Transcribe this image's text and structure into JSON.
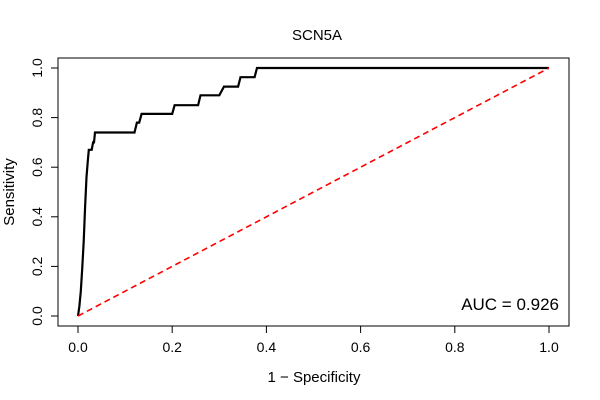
{
  "chart_data": {
    "type": "line",
    "title": "SCN5A",
    "xlabel": "1 − Specificity",
    "ylabel": "Sensitivity",
    "xlim": [
      0,
      1
    ],
    "ylim": [
      0,
      1
    ],
    "x_ticks": [
      0,
      0.2,
      0.4,
      0.6,
      0.8,
      1
    ],
    "x_tick_labels": [
      "0.0",
      "0.2",
      "0.4",
      "0.6",
      "0.8",
      "1.0"
    ],
    "y_ticks": [
      0,
      0.2,
      0.4,
      0.6,
      0.8,
      1
    ],
    "y_tick_labels": [
      "0.0",
      "0.2",
      "0.4",
      "0.6",
      "0.8",
      "1.0"
    ],
    "grid": false,
    "annotation": "AUC = 0.926",
    "series": [
      {
        "color": "#000000",
        "x": [
          0,
          0.003,
          0.006,
          0.009,
          0.012,
          0.015,
          0.018,
          0.021,
          0.023,
          0.025,
          0.027,
          0.029,
          0.032,
          0.034,
          0.036,
          0.04,
          0.045,
          0.12,
          0.125,
          0.128,
          0.13,
          0.135,
          0.14,
          0.2,
          0.205,
          0.21,
          0.255,
          0.26,
          0.3,
          0.31,
          0.34,
          0.345,
          0.375,
          0.38,
          1.0
        ],
        "y": [
          0,
          0.04,
          0.1,
          0.19,
          0.3,
          0.44,
          0.56,
          0.63,
          0.67,
          0.67,
          0.67,
          0.67,
          0.7,
          0.7,
          0.74,
          0.74,
          0.74,
          0.74,
          0.78,
          0.78,
          0.78,
          0.815,
          0.815,
          0.815,
          0.85,
          0.85,
          0.85,
          0.89,
          0.89,
          0.925,
          0.925,
          0.963,
          0.963,
          1.0,
          1.0
        ]
      },
      {
        "color": "#ff0000",
        "dashed": true,
        "x": [
          0,
          1
        ],
        "y": [
          0,
          1
        ]
      }
    ]
  }
}
